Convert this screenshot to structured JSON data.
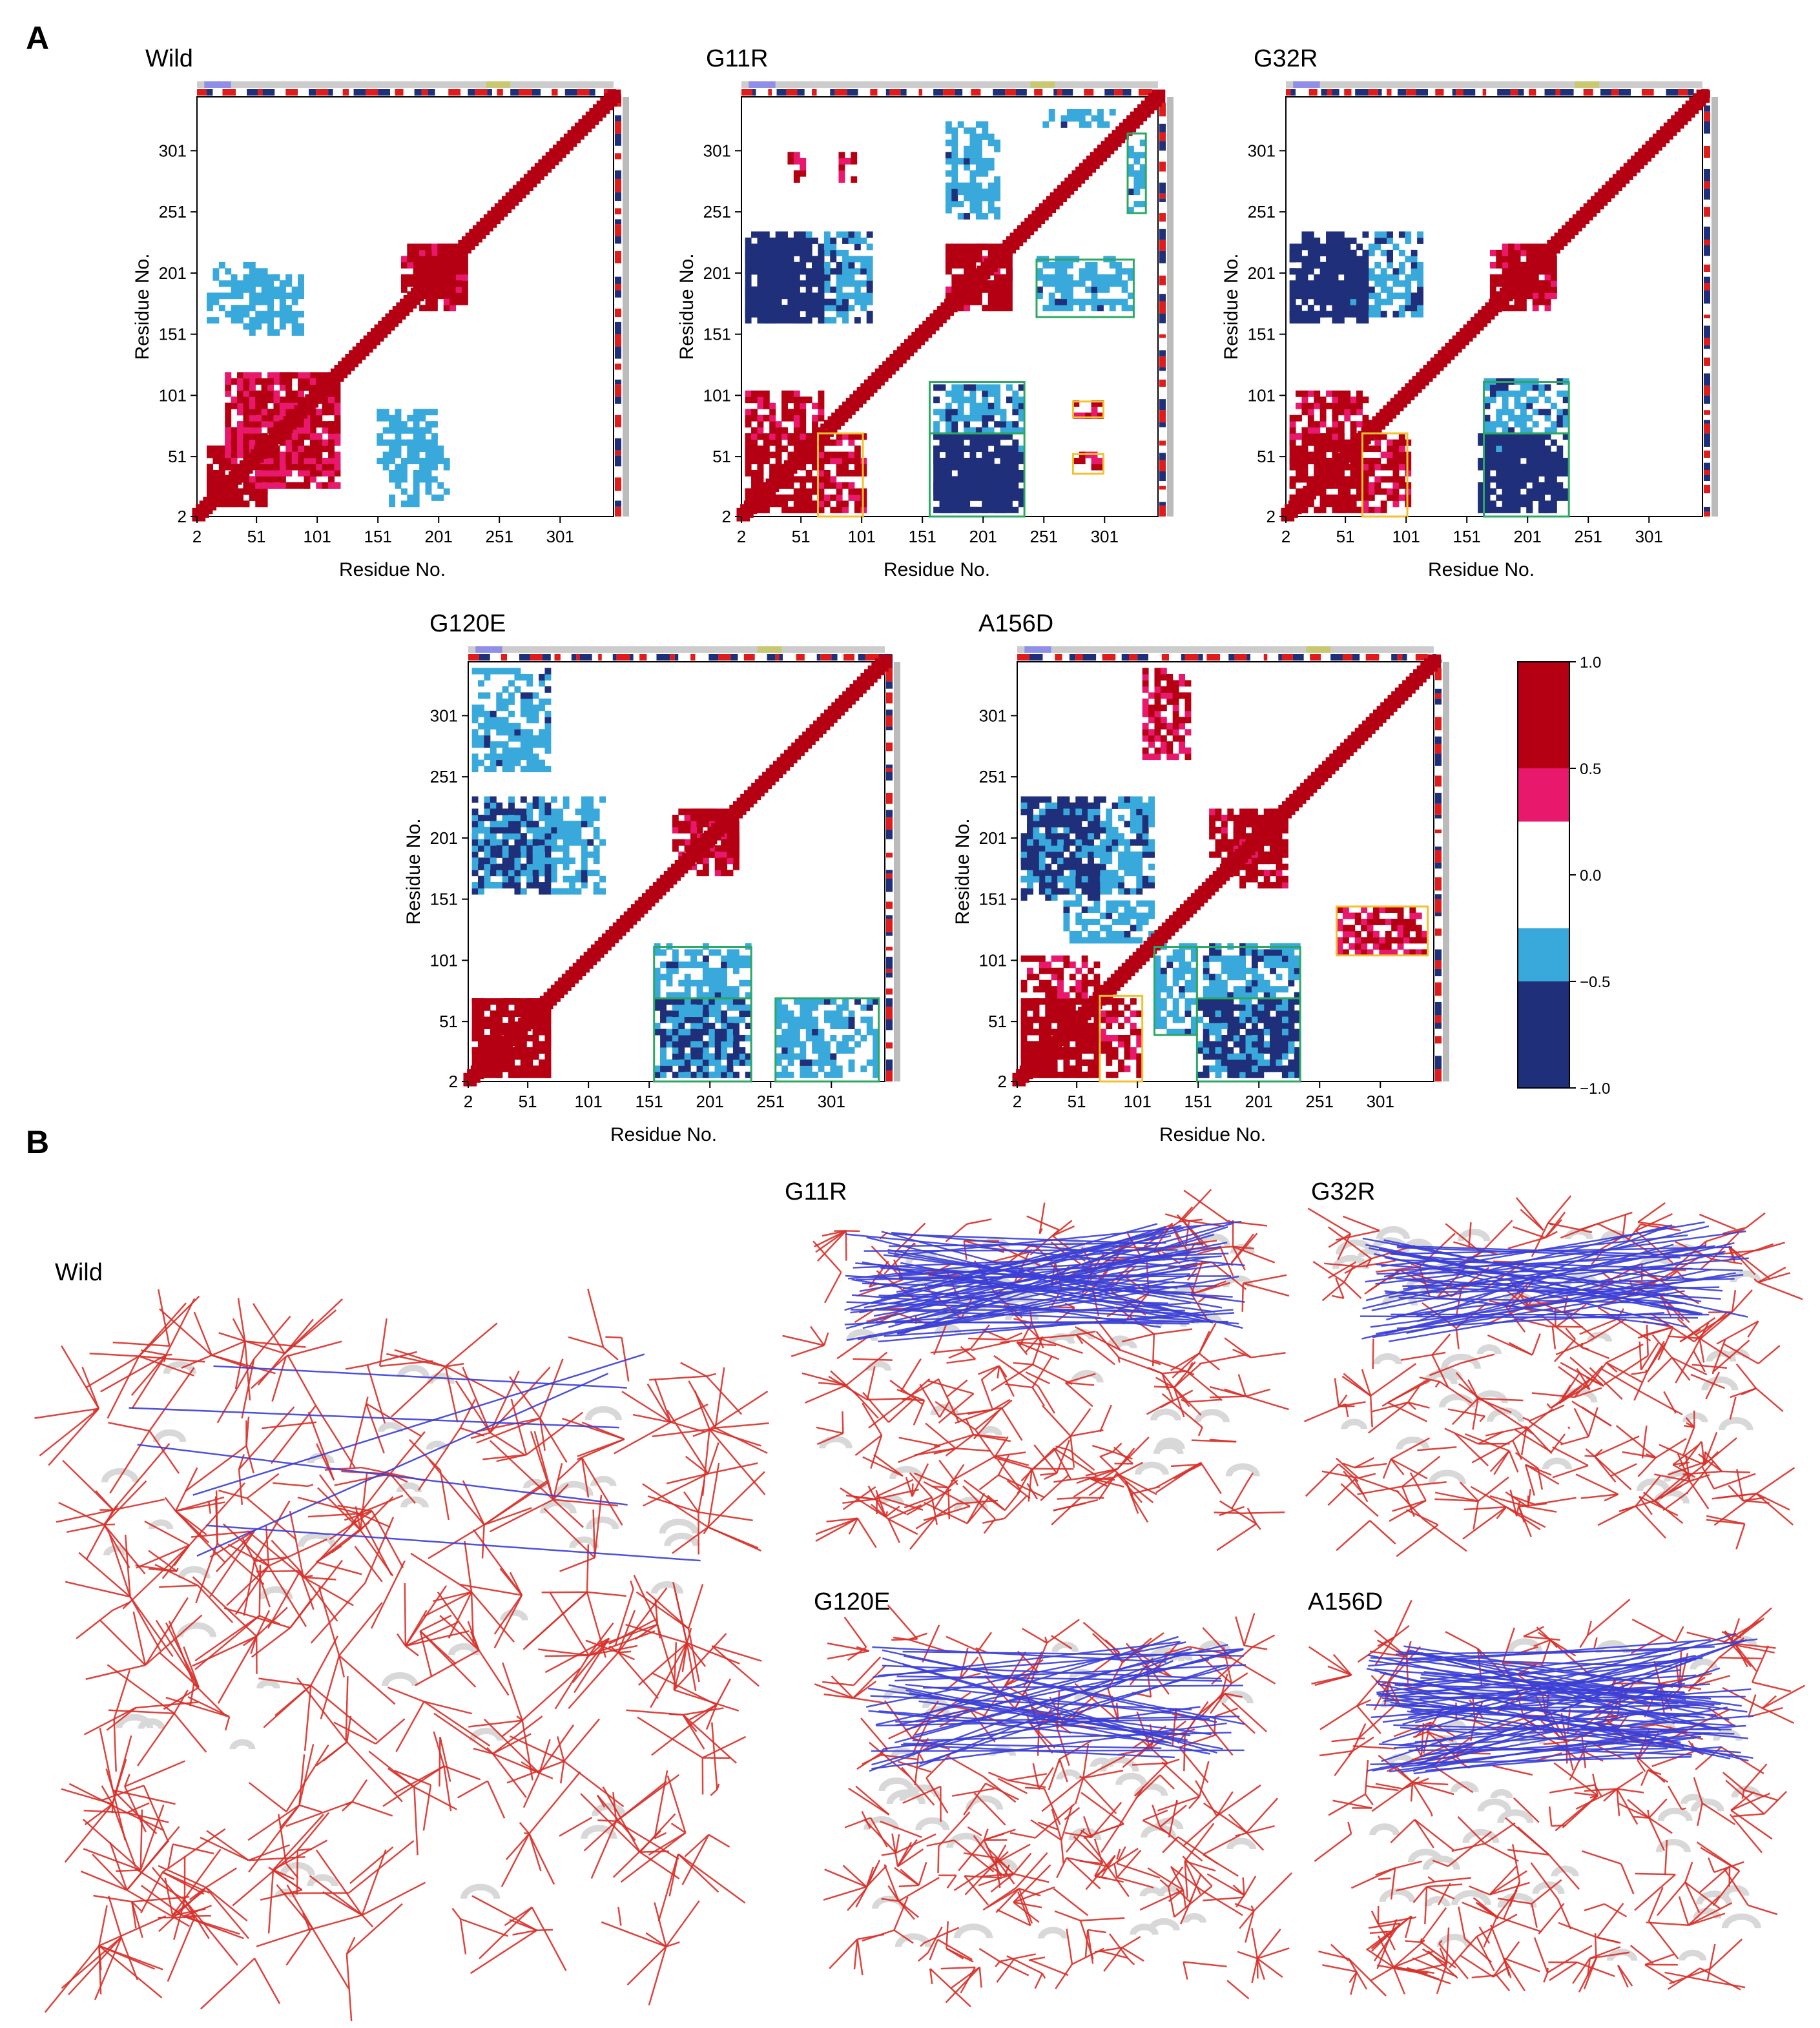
{
  "panels": {
    "a": "A",
    "b": "B"
  },
  "chart_data": [
    {
      "type": "heatmap",
      "title": "Wild",
      "xlabel": "Residue No.",
      "ylabel": "Residue No.",
      "ticks": [
        "2",
        "51",
        "101",
        "151",
        "201",
        "251",
        "301"
      ],
      "tick_values": [
        2,
        51,
        101,
        151,
        201,
        251,
        301
      ],
      "xlim": [
        2,
        345
      ],
      "ylim": [
        2,
        345
      ],
      "blocks": [
        {
          "x": [
            10,
            60
          ],
          "y": [
            10,
            60
          ],
          "v": 0.9
        },
        {
          "x": [
            25,
            120
          ],
          "y": [
            25,
            120
          ],
          "v": 0.6
        },
        {
          "x": [
            180,
            225
          ],
          "y": [
            170,
            225
          ],
          "v": 0.8
        },
        {
          "x": [
            150,
            200
          ],
          "y": [
            40,
            90
          ],
          "v": -0.4
        },
        {
          "x": [
            10,
            60
          ],
          "y": [
            160,
            210
          ],
          "v": -0.4
        },
        {
          "x": [
            60,
            80
          ],
          "y": [
            160,
            200
          ],
          "v": -0.35
        }
      ],
      "boxes": []
    },
    {
      "type": "heatmap",
      "title": "G11R",
      "xlabel": "Residue No.",
      "ylabel": "Residue No.",
      "ticks": [
        "2",
        "51",
        "101",
        "151",
        "201",
        "251",
        "301"
      ],
      "tick_values": [
        2,
        51,
        101,
        151,
        201,
        251,
        301
      ],
      "xlim": [
        2,
        345
      ],
      "ylim": [
        2,
        345
      ],
      "blocks": [
        {
          "x": [
            5,
            70
          ],
          "y": [
            5,
            70
          ],
          "v": 0.95
        },
        {
          "x": [
            65,
            105
          ],
          "y": [
            5,
            70
          ],
          "v": 0.7
        },
        {
          "x": [
            180,
            225
          ],
          "y": [
            170,
            225
          ],
          "v": 0.85
        },
        {
          "x": [
            160,
            235
          ],
          "y": [
            5,
            70
          ],
          "v": -0.9
        },
        {
          "x": [
            160,
            235
          ],
          "y": [
            70,
            110
          ],
          "v": -0.5
        },
        {
          "x": [
            5,
            70
          ],
          "y": [
            160,
            225
          ],
          "v": -0.9
        },
        {
          "x": [
            245,
            325
          ],
          "y": [
            170,
            215
          ],
          "v": -0.45
        },
        {
          "x": [
            320,
            335
          ],
          "y": [
            250,
            310
          ],
          "v": -0.45
        },
        {
          "x": [
            275,
            300
          ],
          "y": [
            40,
            55
          ],
          "v": 0.65
        },
        {
          "x": [
            275,
            300
          ],
          "y": [
            82,
            95
          ],
          "v": 0.6
        }
      ],
      "boxes": [
        {
          "x": [
            65,
            102
          ],
          "y": [
            2,
            70
          ],
          "color": "yellow"
        },
        {
          "x": [
            157,
            235
          ],
          "y": [
            2,
            70
          ],
          "color": "green"
        },
        {
          "x": [
            157,
            235
          ],
          "y": [
            70,
            112
          ],
          "color": "green"
        },
        {
          "x": [
            245,
            325
          ],
          "y": [
            165,
            212
          ],
          "color": "green"
        },
        {
          "x": [
            320,
            335
          ],
          "y": [
            250,
            315
          ],
          "color": "green"
        },
        {
          "x": [
            275,
            300
          ],
          "y": [
            83,
            96
          ],
          "color": "yellow"
        },
        {
          "x": [
            275,
            300
          ],
          "y": [
            37,
            53
          ],
          "color": "yellow"
        }
      ]
    },
    {
      "type": "heatmap",
      "title": "G32R",
      "xlabel": "Residue No.",
      "ylabel": "Residue No.",
      "ticks": [
        "2",
        "51",
        "101",
        "151",
        "201",
        "251",
        "301"
      ],
      "tick_values": [
        2,
        51,
        101,
        151,
        201,
        251,
        301
      ],
      "xlim": [
        2,
        345
      ],
      "ylim": [
        2,
        345
      ],
      "blocks": [
        {
          "x": [
            5,
            70
          ],
          "y": [
            5,
            70
          ],
          "v": 0.95
        },
        {
          "x": [
            65,
            105
          ],
          "y": [
            5,
            70
          ],
          "v": 0.65
        },
        {
          "x": [
            180,
            225
          ],
          "y": [
            170,
            225
          ],
          "v": 0.85
        },
        {
          "x": [
            165,
            235
          ],
          "y": [
            5,
            70
          ],
          "v": -0.9
        },
        {
          "x": [
            165,
            235
          ],
          "y": [
            70,
            112
          ],
          "v": -0.5
        },
        {
          "x": [
            5,
            70
          ],
          "y": [
            160,
            225
          ],
          "v": -0.9
        }
      ],
      "boxes": [
        {
          "x": [
            65,
            102
          ],
          "y": [
            2,
            70
          ],
          "color": "yellow"
        },
        {
          "x": [
            165,
            235
          ],
          "y": [
            2,
            70
          ],
          "color": "green"
        },
        {
          "x": [
            165,
            235
          ],
          "y": [
            70,
            112
          ],
          "color": "green"
        }
      ]
    },
    {
      "type": "heatmap",
      "title": "G120E",
      "xlabel": "Residue No.",
      "ylabel": "Residue No.",
      "ticks": [
        "2",
        "51",
        "101",
        "151",
        "201",
        "251",
        "301"
      ],
      "tick_values": [
        2,
        51,
        101,
        151,
        201,
        251,
        301
      ],
      "xlim": [
        2,
        345
      ],
      "ylim": [
        2,
        345
      ],
      "blocks": [
        {
          "x": [
            5,
            70
          ],
          "y": [
            5,
            70
          ],
          "v": 0.9
        },
        {
          "x": [
            180,
            225
          ],
          "y": [
            170,
            225
          ],
          "v": 0.75
        },
        {
          "x": [
            155,
            235
          ],
          "y": [
            5,
            70
          ],
          "v": -0.6
        },
        {
          "x": [
            155,
            235
          ],
          "y": [
            70,
            112
          ],
          "v": -0.45
        },
        {
          "x": [
            255,
            340
          ],
          "y": [
            5,
            70
          ],
          "v": -0.45
        },
        {
          "x": [
            5,
            70
          ],
          "y": [
            160,
            225
          ],
          "v": -0.6
        }
      ],
      "boxes": [
        {
          "x": [
            155,
            235
          ],
          "y": [
            2,
            70
          ],
          "color": "green"
        },
        {
          "x": [
            155,
            235
          ],
          "y": [
            70,
            112
          ],
          "color": "green"
        },
        {
          "x": [
            255,
            340
          ],
          "y": [
            2,
            70
          ],
          "color": "green"
        }
      ]
    },
    {
      "type": "heatmap",
      "title": "A156D",
      "xlabel": "Residue No.",
      "ylabel": "Residue No.",
      "ticks": [
        "2",
        "51",
        "101",
        "151",
        "201",
        "251",
        "301"
      ],
      "tick_values": [
        2,
        51,
        101,
        151,
        201,
        251,
        301
      ],
      "xlim": [
        2,
        345
      ],
      "ylim": [
        2,
        345
      ],
      "blocks": [
        {
          "x": [
            5,
            70
          ],
          "y": [
            5,
            70
          ],
          "v": 0.95
        },
        {
          "x": [
            70,
            105
          ],
          "y": [
            5,
            70
          ],
          "v": 0.65
        },
        {
          "x": [
            180,
            225
          ],
          "y": [
            160,
            225
          ],
          "v": 0.85
        },
        {
          "x": [
            155,
            235
          ],
          "y": [
            5,
            70
          ],
          "v": -0.9
        },
        {
          "x": [
            155,
            235
          ],
          "y": [
            70,
            112
          ],
          "v": -0.5
        },
        {
          "x": [
            115,
            150
          ],
          "y": [
            40,
            112
          ],
          "v": -0.45
        },
        {
          "x": [
            5,
            70
          ],
          "y": [
            150,
            230
          ],
          "v": -0.6
        },
        {
          "x": [
            265,
            340
          ],
          "y": [
            105,
            145
          ],
          "v": 0.6
        }
      ],
      "boxes": [
        {
          "x": [
            70,
            105
          ],
          "y": [
            2,
            72
          ],
          "color": "yellow"
        },
        {
          "x": [
            115,
            150
          ],
          "y": [
            40,
            112
          ],
          "color": "green"
        },
        {
          "x": [
            150,
            235
          ],
          "y": [
            2,
            70
          ],
          "color": "green"
        },
        {
          "x": [
            150,
            235
          ],
          "y": [
            70,
            112
          ],
          "color": "green"
        },
        {
          "x": [
            265,
            340
          ],
          "y": [
            105,
            145
          ],
          "color": "yellow"
        }
      ]
    }
  ],
  "colorbar": {
    "ticks": [
      "1.0",
      "0.5",
      "0.0",
      "−0.5",
      "−1.0"
    ],
    "bands": [
      {
        "from": 0.5,
        "to": 1.0,
        "color": "#b50013"
      },
      {
        "from": 0.25,
        "to": 0.5,
        "color": "#e8196d"
      },
      {
        "from": -0.25,
        "to": 0.25,
        "color": "#ffffff"
      },
      {
        "from": -0.5,
        "to": -0.25,
        "color": "#39a9dc"
      },
      {
        "from": -1.0,
        "to": -0.5,
        "color": "#1f2f7a"
      }
    ]
  },
  "structures": [
    {
      "label": "Wild",
      "blue_lines": 6
    },
    {
      "label": "G11R",
      "blue_lines": 60
    },
    {
      "label": "G32R",
      "blue_lines": 45
    },
    {
      "label": "G120E",
      "blue_lines": 40
    },
    {
      "label": "A156D",
      "blue_lines": 70
    }
  ],
  "colors": {
    "strong_pos": "#b50013",
    "pos": "#e8196d",
    "neg": "#39a9dc",
    "strong_neg": "#1f2f7a",
    "box_green": "#2aa864",
    "box_yellow": "#f2c12e",
    "corr_line_red": "#d9302a",
    "corr_line_blue": "#3b3fd6",
    "ribbon": "#d8d8d8"
  }
}
